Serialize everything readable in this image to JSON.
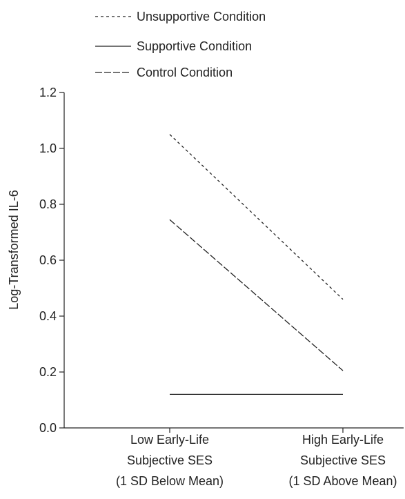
{
  "chart_data": {
    "type": "line",
    "categories": [
      [
        "Low Early-Life",
        "Subjective SES",
        "(1 SD Below Mean)"
      ],
      [
        "High Early-Life",
        "Subjective SES",
        "(1 SD Above Mean)"
      ]
    ],
    "ylabel": "Log-Transformed IL-6",
    "ylim": [
      0.0,
      1.2
    ],
    "yticks": [
      "0.0",
      "0.2",
      "0.4",
      "0.6",
      "0.8",
      "1.0",
      "1.2"
    ],
    "grid": false,
    "legend_position": "top-left",
    "series": [
      {
        "name": "Unsupportive Condition",
        "line_style": "dotted",
        "values": [
          1.05,
          0.46
        ]
      },
      {
        "name": "Supportive Condition",
        "line_style": "solid",
        "values": [
          0.12,
          0.12
        ]
      },
      {
        "name": "Control Condition",
        "line_style": "dashed",
        "values": [
          0.745,
          0.205
        ]
      }
    ],
    "line_color": "#222222"
  }
}
